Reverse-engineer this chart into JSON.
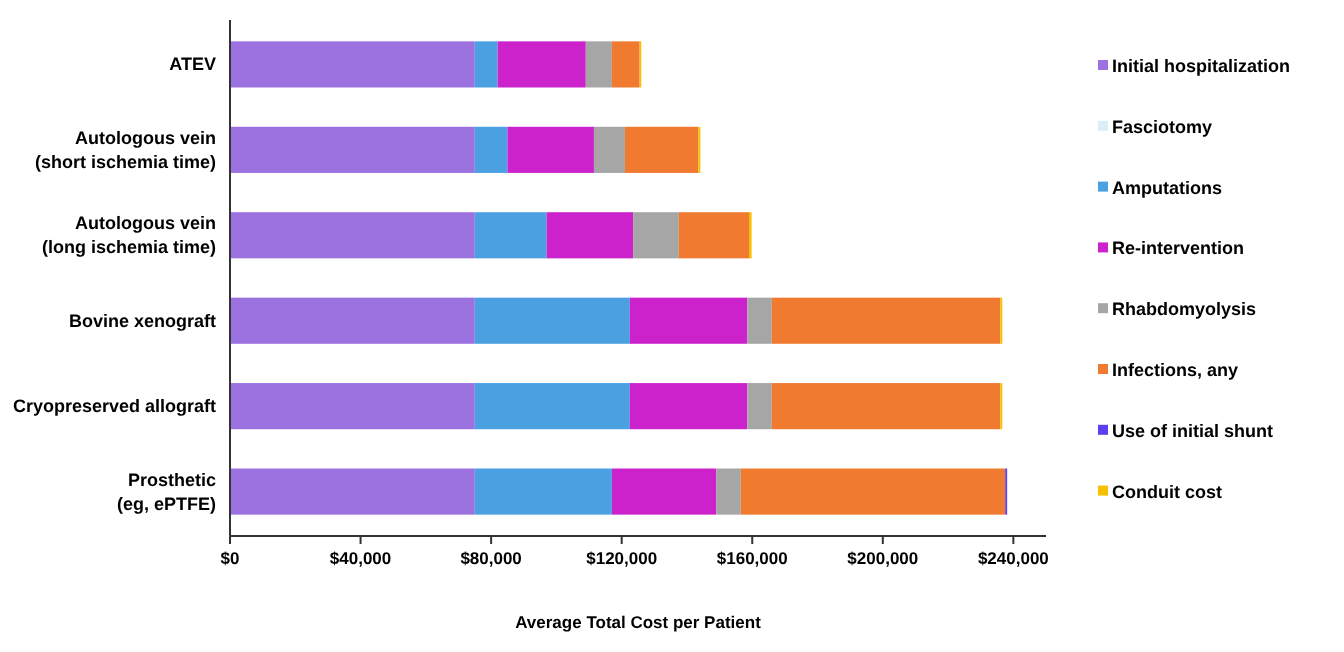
{
  "chart_data": {
    "type": "bar",
    "orientation": "horizontal",
    "stacked": true,
    "xlabel": "Average Total Cost per Patient",
    "categories": [
      "ATEV",
      "Autologous vein\n(short ischemia time)",
      "Autologous vein\n(long ischemia time)",
      "Bovine xenograft",
      "Cryopreserved allograft",
      "Prosthetic\n(eg, ePTFE)"
    ],
    "series": [
      {
        "name": "Initial hospitalization",
        "color": "#9b72e0",
        "values": [
          75000,
          75000,
          75000,
          75000,
          75000,
          75000
        ]
      },
      {
        "name": "Fasciotomy",
        "color": "#d9eef5",
        "values": [
          0,
          0,
          0,
          0,
          0,
          0
        ]
      },
      {
        "name": "Amputations",
        "color": "#4aa0e0",
        "values": [
          7000,
          10000,
          22000,
          47500,
          47500,
          42000
        ]
      },
      {
        "name": "Re-intervention",
        "color": "#cc22cc",
        "values": [
          27000,
          26500,
          26500,
          36000,
          36000,
          32000
        ]
      },
      {
        "name": "Rhabdomyolysis",
        "color": "#a6a6a6",
        "values": [
          8000,
          9500,
          14000,
          7500,
          7500,
          7500
        ]
      },
      {
        "name": "Infections, any",
        "color": "#f07a30",
        "values": [
          8500,
          22500,
          21500,
          70000,
          70000,
          81000
        ]
      },
      {
        "name": "Use of initial shunt",
        "color": "#5b3ff0",
        "values": [
          0,
          0,
          0,
          0,
          0,
          600
        ]
      },
      {
        "name": "Conduit cost",
        "color": "#f5c000",
        "values": [
          500,
          600,
          800,
          600,
          600,
          0
        ]
      }
    ],
    "xlim": [
      0,
      250000
    ],
    "xticks": [
      {
        "value": 0,
        "label": "$0"
      },
      {
        "value": 40000,
        "label": "$40,000"
      },
      {
        "value": 80000,
        "label": "$80,000"
      },
      {
        "value": 120000,
        "label": "$120,000"
      },
      {
        "value": 160000,
        "label": "$160,000"
      },
      {
        "value": 200000,
        "label": "$200,000"
      },
      {
        "value": 240000,
        "label": "$240,000"
      }
    ],
    "grid": false,
    "legend": "right"
  }
}
